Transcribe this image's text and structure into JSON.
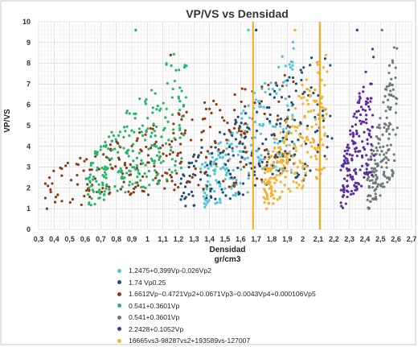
{
  "chart_data": {
    "type": "scatter",
    "title": "VP/VS vs Densidad",
    "xlabel": "Densidad",
    "xlabel_unit": "gr/cm3",
    "ylabel": "VP/VS",
    "xlim": [
      0.3,
      2.7
    ],
    "ylim": [
      0,
      10
    ],
    "x_ticks": [
      "0,3",
      "0,4",
      "0,5",
      "0,6",
      "0,7",
      "0,8",
      "0,9",
      "1",
      "1,1",
      "1,2",
      "1,3",
      "1,4",
      "1,5",
      "1,6",
      "1,7",
      "1,8",
      "1,9",
      "2",
      "2,1",
      "2,2",
      "2,3",
      "2,4",
      "2,5",
      "2,6",
      "2,7"
    ],
    "y_ticks": [
      "0",
      "1",
      "2",
      "3",
      "4",
      "5",
      "6",
      "7",
      "8",
      "9",
      "10"
    ],
    "grid": true,
    "legend_position": "bottom",
    "vertical_lines": [
      {
        "x": 1.68,
        "color": "#f4a81d"
      },
      {
        "x": 2.11,
        "color": "#f4a81d"
      }
    ],
    "series": [
      {
        "name": "1,2475+0,399Vp-0,026Vp2",
        "color": "#4fc3d8",
        "x_range": [
          1.35,
          1.95
        ],
        "y_range": [
          1.0,
          9.6
        ]
      },
      {
        "name": "1.74 Vp0.25",
        "color": "#1f4e79",
        "x_range": [
          1.2,
          2.2
        ],
        "y_range": [
          1.0,
          9.6
        ]
      },
      {
        "name": "1.6612Vp−0.4721Vp2+0.0671Vp3−0.0043Vp4+0.000106Vp5",
        "color": "#8b3a12",
        "x_range": [
          0.35,
          1.95
        ],
        "y_range": [
          1.0,
          8.4
        ]
      },
      {
        "name": "0.541+0.3601Vp",
        "color": "#2bb36a",
        "x_range": [
          0.6,
          1.25
        ],
        "y_range": [
          1.0,
          9.6
        ]
      },
      {
        "name": "0.541+0.3601Vp",
        "color": "#6e7b7b",
        "x_range": [
          2.42,
          2.6
        ],
        "y_range": [
          1.0,
          9.6
        ]
      },
      {
        "name": "2.2428+0.1052Vp",
        "color": "#5b2c9e",
        "x_range": [
          2.25,
          2.45
        ],
        "y_range": [
          1.0,
          9.6
        ]
      },
      {
        "name": "16665vs3-98287vs2+193589vs-127007",
        "color": "#f4b131",
        "x_range": [
          1.75,
          2.15
        ],
        "y_range": [
          1.0,
          9.6
        ]
      }
    ]
  }
}
